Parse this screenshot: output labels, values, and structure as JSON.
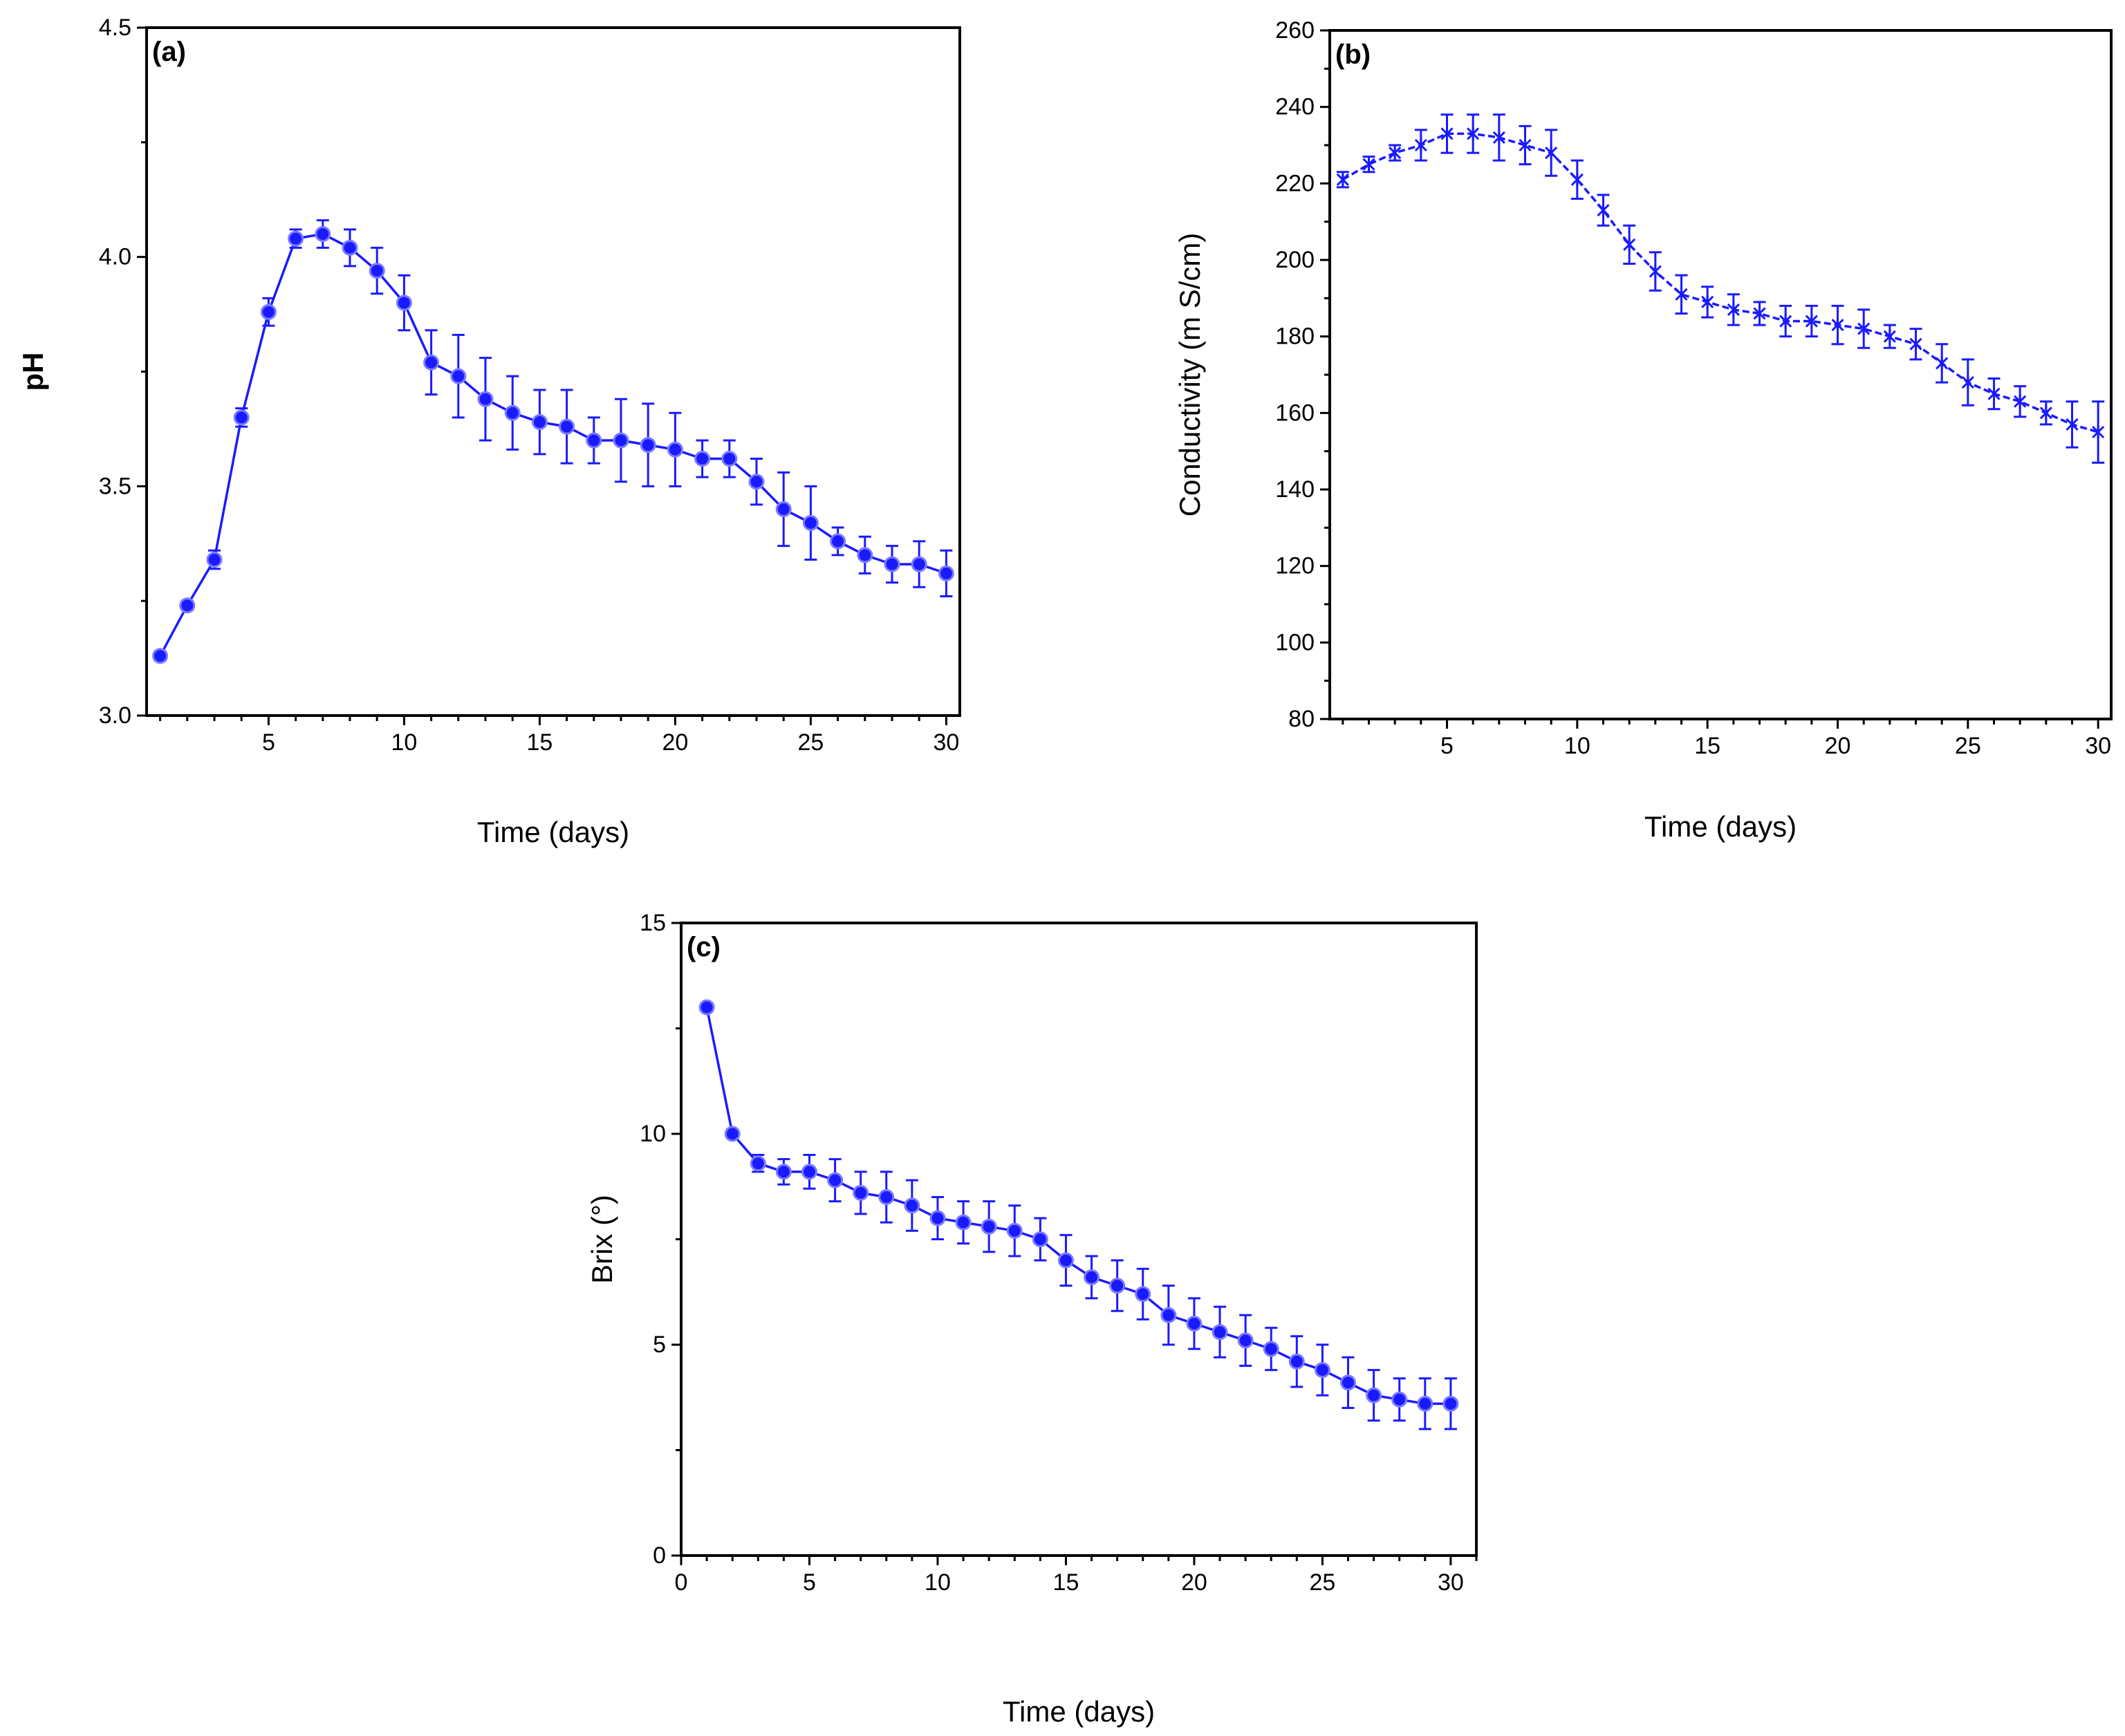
{
  "figure": {
    "description_colors": {
      "series": "#1a1aff",
      "axis": "#000000",
      "background": "#ffffff"
    }
  },
  "chart_data": [
    {
      "id": "a",
      "type": "line",
      "panel_label": "(a)",
      "title": "",
      "xlabel": "Time (days)",
      "ylabel": "pH",
      "xlim": [
        0.5,
        30.5
      ],
      "ylim": [
        3.0,
        4.5
      ],
      "xticks": [
        5,
        10,
        15,
        20,
        25,
        30
      ],
      "yticks": [
        3.0,
        3.5,
        4.0,
        4.5
      ],
      "ytick_labels": [
        "3.0",
        "3.5",
        "4.0",
        "4.5"
      ],
      "xtick_labels": [
        "5",
        "10",
        "15",
        "20",
        "25",
        "30"
      ],
      "grid": false,
      "legend": "none",
      "series": [
        {
          "name": "pH",
          "x": [
            1,
            2,
            3,
            4,
            5,
            6,
            7,
            8,
            9,
            10,
            11,
            12,
            13,
            14,
            15,
            16,
            17,
            18,
            19,
            20,
            21,
            22,
            23,
            24,
            25,
            26,
            27,
            28,
            29,
            30
          ],
          "values": [
            3.13,
            3.24,
            3.34,
            3.65,
            3.88,
            4.04,
            4.05,
            4.02,
            3.97,
            3.9,
            3.77,
            3.74,
            3.69,
            3.66,
            3.64,
            3.63,
            3.6,
            3.6,
            3.59,
            3.58,
            3.56,
            3.56,
            3.51,
            3.45,
            3.42,
            3.38,
            3.35,
            3.33,
            3.33,
            3.31
          ],
          "errors": [
            0.01,
            0.01,
            0.02,
            0.02,
            0.03,
            0.02,
            0.03,
            0.04,
            0.05,
            0.06,
            0.07,
            0.09,
            0.09,
            0.08,
            0.07,
            0.08,
            0.05,
            0.09,
            0.09,
            0.08,
            0.04,
            0.04,
            0.05,
            0.08,
            0.08,
            0.03,
            0.04,
            0.04,
            0.05,
            0.05
          ]
        }
      ]
    },
    {
      "id": "b",
      "type": "line",
      "panel_label": "(b)",
      "title": "",
      "xlabel": "Time (days)",
      "ylabel": "Conductivity (m S/cm)",
      "xlim": [
        0.5,
        30.5
      ],
      "ylim": [
        80,
        260
      ],
      "xticks": [
        5,
        10,
        15,
        20,
        25,
        30
      ],
      "yticks": [
        80,
        100,
        120,
        140,
        160,
        180,
        200,
        220,
        240,
        260
      ],
      "ytick_labels": [
        "80",
        "100",
        "120",
        "140",
        "160",
        "180",
        "200",
        "220",
        "240",
        "260"
      ],
      "xtick_labels": [
        "5",
        "10",
        "15",
        "20",
        "25",
        "30"
      ],
      "grid": false,
      "legend": "none",
      "series": [
        {
          "name": "Conductivity",
          "x": [
            1,
            2,
            3,
            4,
            5,
            6,
            7,
            8,
            9,
            10,
            11,
            12,
            13,
            14,
            15,
            16,
            17,
            18,
            19,
            20,
            21,
            22,
            23,
            24,
            25,
            26,
            27,
            28,
            29,
            30
          ],
          "values": [
            221,
            225,
            228,
            230,
            233,
            233,
            232,
            230,
            228,
            221,
            213,
            204,
            197,
            191,
            189,
            187,
            186,
            184,
            184,
            183,
            182,
            180,
            178,
            173,
            168,
            165,
            163,
            160,
            157,
            155
          ],
          "errors": [
            2,
            2,
            2,
            4,
            5,
            5,
            6,
            5,
            6,
            5,
            4,
            5,
            5,
            5,
            4,
            4,
            3,
            4,
            4,
            5,
            5,
            3,
            4,
            5,
            6,
            4,
            4,
            3,
            6,
            8
          ]
        }
      ]
    },
    {
      "id": "c",
      "type": "line",
      "panel_label": "(c)",
      "title": "",
      "xlabel": "Time (days)",
      "ylabel": "Brix (°)",
      "xlim": [
        0,
        31
      ],
      "ylim": [
        0,
        15
      ],
      "xticks": [
        0,
        5,
        10,
        15,
        20,
        25,
        30
      ],
      "yticks": [
        0,
        5,
        10,
        15
      ],
      "ytick_labels": [
        "0",
        "5",
        "10",
        "15"
      ],
      "xtick_labels": [
        "0",
        "5",
        "10",
        "15",
        "20",
        "25",
        "30"
      ],
      "grid": false,
      "legend": "none",
      "series": [
        {
          "name": "Brix",
          "x": [
            1,
            2,
            3,
            4,
            5,
            6,
            7,
            8,
            9,
            10,
            11,
            12,
            13,
            14,
            15,
            16,
            17,
            18,
            19,
            20,
            21,
            22,
            23,
            24,
            25,
            26,
            27,
            28,
            29,
            30
          ],
          "values": [
            13.0,
            10.0,
            9.3,
            9.1,
            9.1,
            8.9,
            8.6,
            8.5,
            8.3,
            8.0,
            7.9,
            7.8,
            7.7,
            7.5,
            7.0,
            6.6,
            6.4,
            6.2,
            5.7,
            5.5,
            5.3,
            5.1,
            4.9,
            4.6,
            4.4,
            4.1,
            3.8,
            3.7,
            3.6,
            3.6
          ],
          "errors": [
            0.1,
            0.1,
            0.2,
            0.3,
            0.4,
            0.5,
            0.5,
            0.6,
            0.6,
            0.5,
            0.5,
            0.6,
            0.6,
            0.5,
            0.6,
            0.5,
            0.6,
            0.6,
            0.7,
            0.6,
            0.6,
            0.6,
            0.5,
            0.6,
            0.6,
            0.6,
            0.6,
            0.5,
            0.6,
            0.6
          ]
        }
      ]
    }
  ]
}
